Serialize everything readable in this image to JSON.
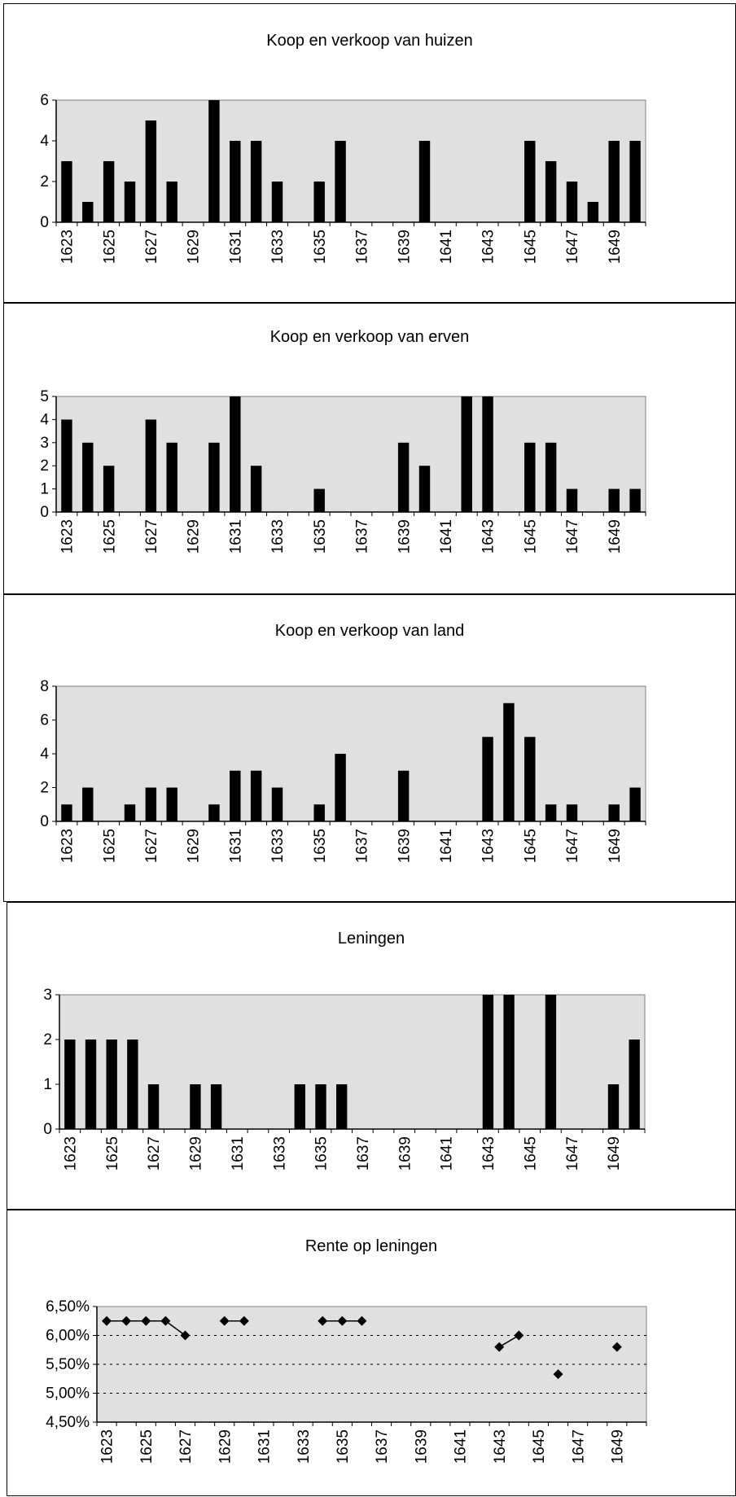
{
  "chart_data": [
    {
      "type": "bar",
      "title": "Koop en verkoop van huizen",
      "x": [
        1623,
        1624,
        1625,
        1626,
        1627,
        1628,
        1629,
        1630,
        1631,
        1632,
        1633,
        1634,
        1635,
        1636,
        1637,
        1638,
        1639,
        1640,
        1641,
        1642,
        1643,
        1644,
        1645,
        1646,
        1647,
        1648,
        1649,
        1650
      ],
      "values": [
        3,
        1,
        3,
        2,
        5,
        2,
        0,
        6,
        4,
        4,
        2,
        0,
        2,
        4,
        0,
        0,
        0,
        4,
        0,
        0,
        0,
        0,
        4,
        3,
        2,
        1,
        4,
        4
      ],
      "ylim": [
        0,
        6
      ],
      "yticks": [
        0,
        2,
        4,
        6
      ],
      "ytick_labels": [
        "0",
        "2",
        "4",
        "6"
      ],
      "xtick_labels": [
        "1623",
        "1625",
        "1627",
        "1629",
        "1631",
        "1633",
        "1635",
        "1637",
        "1639",
        "1641",
        "1643",
        "1645",
        "1647",
        "1649"
      ],
      "grid": false,
      "background": "#e0e0e0",
      "bar_color": "#000000"
    },
    {
      "type": "bar",
      "title": "Koop en verkoop van erven",
      "x": [
        1623,
        1624,
        1625,
        1626,
        1627,
        1628,
        1629,
        1630,
        1631,
        1632,
        1633,
        1634,
        1635,
        1636,
        1637,
        1638,
        1639,
        1640,
        1641,
        1642,
        1643,
        1644,
        1645,
        1646,
        1647,
        1648,
        1649,
        1650
      ],
      "values": [
        4,
        3,
        2,
        0,
        4,
        3,
        0,
        3,
        5,
        2,
        0,
        0,
        1,
        0,
        0,
        0,
        3,
        2,
        0,
        5,
        5,
        0,
        3,
        3,
        1,
        0,
        1,
        1
      ],
      "ylim": [
        0,
        5
      ],
      "yticks": [
        0,
        1,
        2,
        3,
        4,
        5
      ],
      "ytick_labels": [
        "0",
        "1",
        "2",
        "3",
        "4",
        "5"
      ],
      "xtick_labels": [
        "1623",
        "1625",
        "1627",
        "1629",
        "1631",
        "1633",
        "1635",
        "1637",
        "1639",
        "1641",
        "1643",
        "1645",
        "1647",
        "1649"
      ],
      "grid": false,
      "background": "#e0e0e0",
      "bar_color": "#000000"
    },
    {
      "type": "bar",
      "title": "Koop en verkoop van land",
      "x": [
        1623,
        1624,
        1625,
        1626,
        1627,
        1628,
        1629,
        1630,
        1631,
        1632,
        1633,
        1634,
        1635,
        1636,
        1637,
        1638,
        1639,
        1640,
        1641,
        1642,
        1643,
        1644,
        1645,
        1646,
        1647,
        1648,
        1649,
        1650
      ],
      "values": [
        1,
        2,
        0,
        1,
        2,
        2,
        0,
        1,
        3,
        3,
        2,
        0,
        1,
        4,
        0,
        0,
        3,
        0,
        0,
        0,
        5,
        7,
        5,
        1,
        1,
        0,
        1,
        2
      ],
      "ylim": [
        0,
        8
      ],
      "yticks": [
        0,
        2,
        4,
        6,
        8
      ],
      "ytick_labels": [
        "0",
        "2",
        "4",
        "6",
        "8"
      ],
      "xtick_labels": [
        "1623",
        "1625",
        "1627",
        "1629",
        "1631",
        "1633",
        "1635",
        "1637",
        "1639",
        "1641",
        "1643",
        "1645",
        "1647",
        "1649"
      ],
      "grid": false,
      "background": "#e0e0e0",
      "bar_color": "#000000"
    },
    {
      "type": "bar",
      "title": "Leningen",
      "x": [
        1623,
        1624,
        1625,
        1626,
        1627,
        1628,
        1629,
        1630,
        1631,
        1632,
        1633,
        1634,
        1635,
        1636,
        1637,
        1638,
        1639,
        1640,
        1641,
        1642,
        1643,
        1644,
        1645,
        1646,
        1647,
        1648,
        1649,
        1650
      ],
      "values": [
        2,
        2,
        2,
        2,
        1,
        0,
        1,
        1,
        0,
        0,
        0,
        1,
        1,
        1,
        0,
        0,
        0,
        0,
        0,
        0,
        3,
        3,
        0,
        3,
        0,
        0,
        1,
        2
      ],
      "ylim": [
        0,
        3
      ],
      "yticks": [
        0,
        1,
        2,
        3
      ],
      "ytick_labels": [
        "0",
        "1",
        "2",
        "3"
      ],
      "xtick_labels": [
        "1623",
        "1625",
        "1627",
        "1629",
        "1631",
        "1633",
        "1635",
        "1637",
        "1639",
        "1641",
        "1643",
        "1645",
        "1647",
        "1649"
      ],
      "grid": false,
      "background": "#e0e0e0",
      "bar_color": "#000000"
    },
    {
      "type": "line",
      "title": "Rente op leningen",
      "x": [
        1623,
        1624,
        1625,
        1626,
        1627,
        1628,
        1629,
        1630,
        1631,
        1632,
        1633,
        1634,
        1635,
        1636,
        1637,
        1638,
        1639,
        1640,
        1641,
        1642,
        1643,
        1644,
        1645,
        1646,
        1647,
        1648,
        1649
      ],
      "values": [
        0.0625,
        0.0625,
        0.0625,
        0.0625,
        0.06,
        null,
        0.0625,
        0.0625,
        null,
        null,
        null,
        0.0625,
        0.0625,
        0.0625,
        null,
        null,
        null,
        null,
        null,
        null,
        0.058,
        0.06,
        null,
        0.0533,
        null,
        null,
        0.058
      ],
      "ylim": [
        0.045,
        0.065
      ],
      "yticks": [
        0.045,
        0.05,
        0.055,
        0.06,
        0.065
      ],
      "ytick_labels": [
        "4,50%",
        "5,00%",
        "5,50%",
        "6,00%",
        "6,50%"
      ],
      "xtick_labels": [
        "1623",
        "1625",
        "1627",
        "1629",
        "1631",
        "1633",
        "1635",
        "1637",
        "1639",
        "1641",
        "1643",
        "1645",
        "1647",
        "1649"
      ],
      "grid": true,
      "background": "#e0e0e0",
      "line_color": "#000000",
      "marker": "diamond"
    }
  ]
}
